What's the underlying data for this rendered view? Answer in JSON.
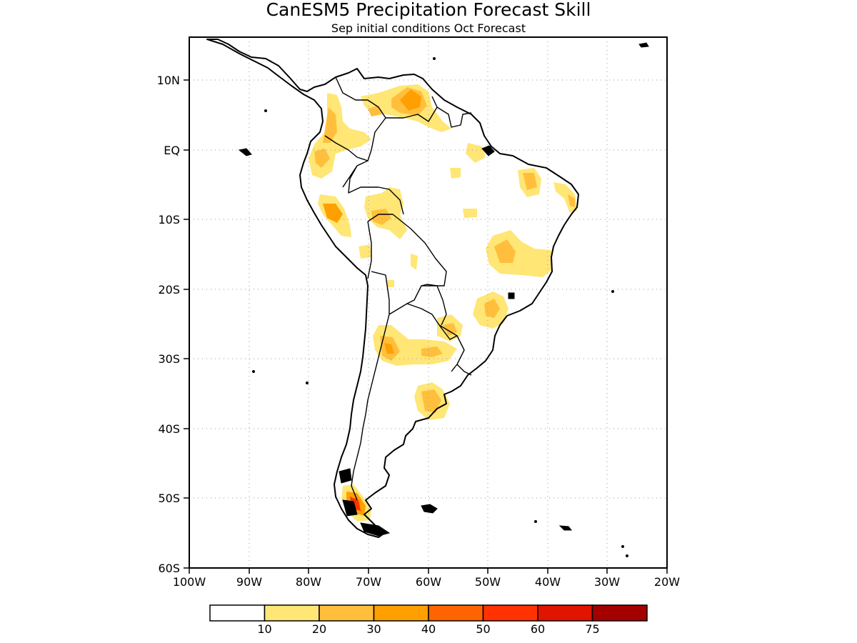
{
  "title": "CanESM5 Precipitation Forecast Skill",
  "subtitle": "Sep initial conditions  Oct Forecast",
  "lat_ticks": [
    "10N",
    "EQ",
    "10S",
    "20S",
    "30S",
    "40S",
    "50S",
    "60S"
  ],
  "lon_ticks": [
    "100W",
    "90W",
    "80W",
    "70W",
    "60W",
    "50W",
    "40W",
    "30W",
    "20W"
  ],
  "legend": {
    "levels": [
      "10",
      "20",
      "30",
      "40",
      "50",
      "60",
      "75"
    ],
    "colors": [
      "#ffffff",
      "#ffe675",
      "#ffbf3c",
      "#ff9f00",
      "#ff6400",
      "#ff3200",
      "#e11400",
      "#a50000"
    ]
  },
  "map": {
    "region": "South America",
    "lon_range": [
      -100,
      -20
    ],
    "lat_range": [
      -60,
      15
    ],
    "grid": true,
    "variable": "precipitation forecast skill"
  }
}
